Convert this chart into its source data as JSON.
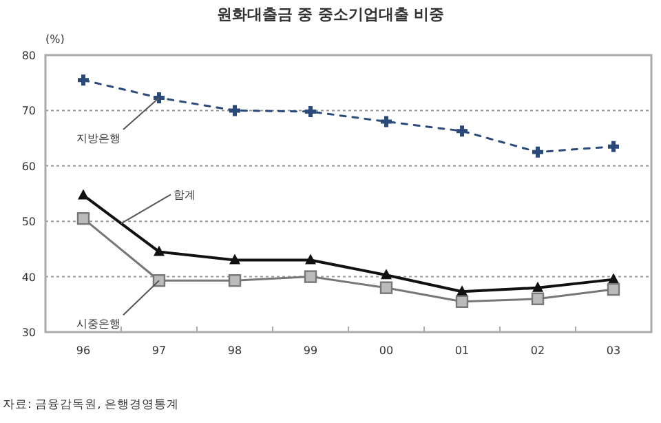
{
  "chart_data": {
    "type": "line",
    "title": "원화대출금 중 중소기업대출 비중",
    "ylabel": "(%)",
    "categories": [
      "96",
      "97",
      "98",
      "99",
      "00",
      "01",
      "02",
      "03"
    ],
    "series": [
      {
        "name": "지방은행",
        "color": "#2b4a7a",
        "marker": "cross",
        "line_style": "dashed",
        "values": [
          75.5,
          72.3,
          70,
          69.8,
          68,
          66.3,
          62.5,
          63.5
        ]
      },
      {
        "name": "합계",
        "color": "#111111",
        "marker": "triangle",
        "line_style": "solid",
        "values": [
          54.7,
          44.5,
          43,
          43,
          40.3,
          37.3,
          38,
          39.5
        ]
      },
      {
        "name": "시중은행",
        "color": "#777777",
        "marker": "square",
        "line_style": "solid",
        "values": [
          50.5,
          39.3,
          39.3,
          40,
          38,
          35.5,
          36,
          37.7
        ]
      }
    ],
    "ylim": [
      30,
      80
    ],
    "yticks": [
      30,
      40,
      50,
      60,
      70,
      80
    ],
    "grid": "y",
    "annotations": [
      "자료: 금융감독원, 은행경영통계"
    ]
  }
}
